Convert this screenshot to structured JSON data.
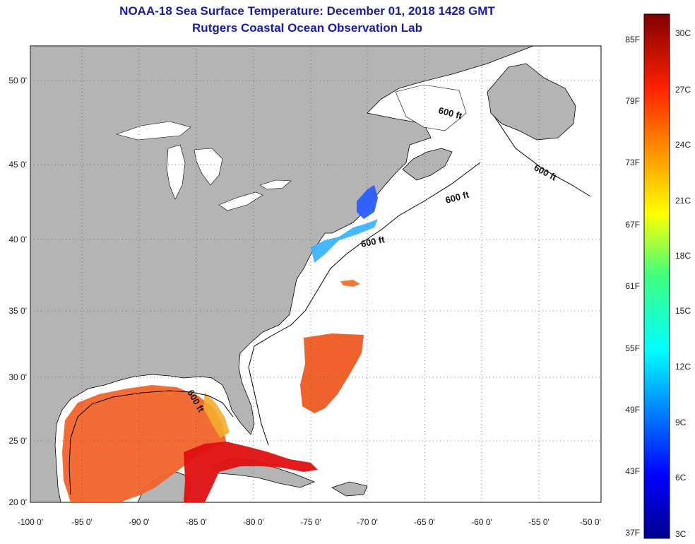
{
  "title_line1": "NOAA-18 Sea Surface Temperature:  December 01, 2018 1428 GMT",
  "title_line2": "Rutgers Coastal Ocean Observation Lab",
  "map": {
    "lat_labels": [
      "50 0'",
      "45 0'",
      "40 0'",
      "35 0'",
      "30 0'",
      "25 0'",
      "20 0'"
    ],
    "lon_labels": [
      "-100 0'",
      "-95 0'",
      "-90 0'",
      "-85 0'",
      "-80 0'",
      "-75 0'",
      "-70 0'",
      "-65 0'",
      "-60 0'",
      "-55 0'",
      "-50 0'"
    ],
    "contour_label": "600 ft",
    "land_color": "#b4b4b4",
    "ocean_color": "#ffffff"
  },
  "colorbar": {
    "f_labels": [
      "85F",
      "79F",
      "73F",
      "67F",
      "61F",
      "55F",
      "49F",
      "43F",
      "37F"
    ],
    "c_labels": [
      "30C",
      "27C",
      "24C",
      "21C",
      "18C",
      "15C",
      "12C",
      "9C",
      "6C",
      "3C"
    ]
  }
}
